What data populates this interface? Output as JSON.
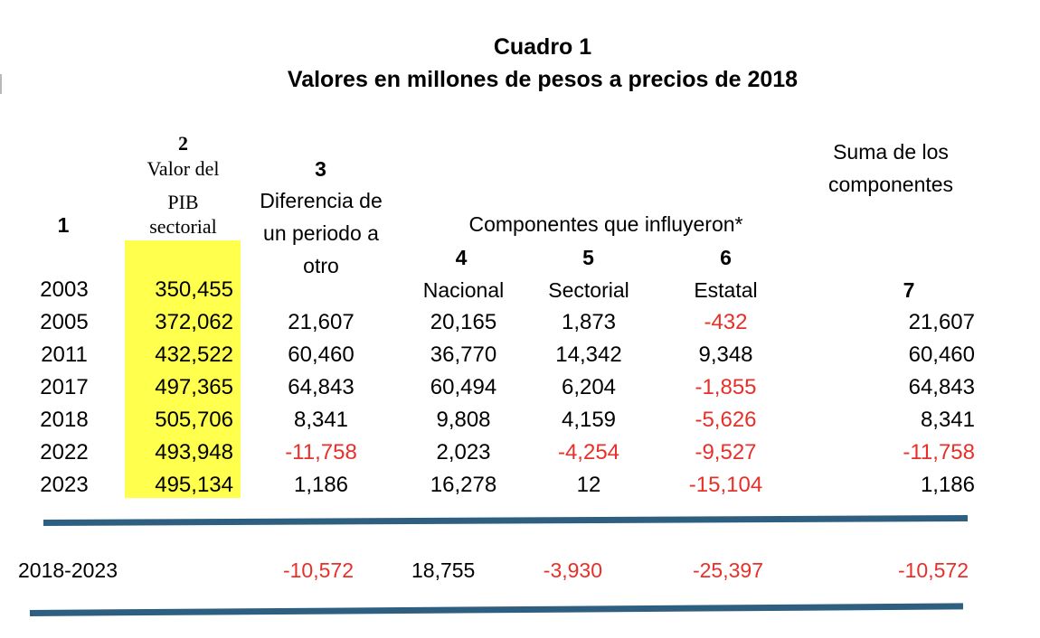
{
  "title": {
    "line1": "Cuadro 1",
    "line2": "Valores en millones de pesos a precios de 2018"
  },
  "headers": {
    "col1": {
      "number": "1"
    },
    "col2": {
      "number": "2",
      "line1": "Valor del",
      "line2": "PIB",
      "line3": "sectorial"
    },
    "col3": {
      "number": "3",
      "line1": "Diferencia de",
      "line2": "un periodo a",
      "line3": "otro"
    },
    "components_group": "Componentes que influyeron*",
    "col4": {
      "number": "4",
      "label": "Nacional"
    },
    "col5": {
      "number": "5",
      "label": "Sectorial"
    },
    "col6": {
      "number": "6",
      "label": "Estatal"
    },
    "col7": {
      "number": "7",
      "line1": "Suma de los",
      "line2": "componentes"
    }
  },
  "colors": {
    "negative": "#e8302a",
    "highlight": "#ffff4d",
    "rule": "#2e5f80"
  },
  "rows": [
    {
      "year": "2003",
      "pib": "350,455",
      "diff": "",
      "nacional": "",
      "sectorial": "",
      "estatal": "",
      "suma": ""
    },
    {
      "year": "2005",
      "pib": "372,062",
      "diff": "21,607",
      "nacional": "20,165",
      "sectorial": "1,873",
      "estatal": "-432",
      "suma": "21,607"
    },
    {
      "year": "2011",
      "pib": "432,522",
      "diff": "60,460",
      "nacional": "36,770",
      "sectorial": "14,342",
      "estatal": "9,348",
      "suma": "60,460"
    },
    {
      "year": "2017",
      "pib": "497,365",
      "diff": "64,843",
      "nacional": "60,494",
      "sectorial": "6,204",
      "estatal": "-1,855",
      "suma": "64,843"
    },
    {
      "year": "2018",
      "pib": "505,706",
      "diff": "8,341",
      "nacional": "9,808",
      "sectorial": "4,159",
      "estatal": "-5,626",
      "suma": "8,341"
    },
    {
      "year": "2022",
      "pib": "493,948",
      "diff": "-11,758",
      "nacional": "2,023",
      "sectorial": "-4,254",
      "estatal": "-9,527",
      "suma": "-11,758"
    },
    {
      "year": "2023",
      "pib": "495,134",
      "diff": "1,186",
      "nacional": "16,278",
      "sectorial": "12",
      "estatal": "-15,104",
      "suma": "1,186"
    }
  ],
  "summary": {
    "period": "2018-2023",
    "diff": "-10,572",
    "nacional": "18,755",
    "sectorial": "-3,930",
    "estatal": "-25,397",
    "suma": "-10,572"
  }
}
